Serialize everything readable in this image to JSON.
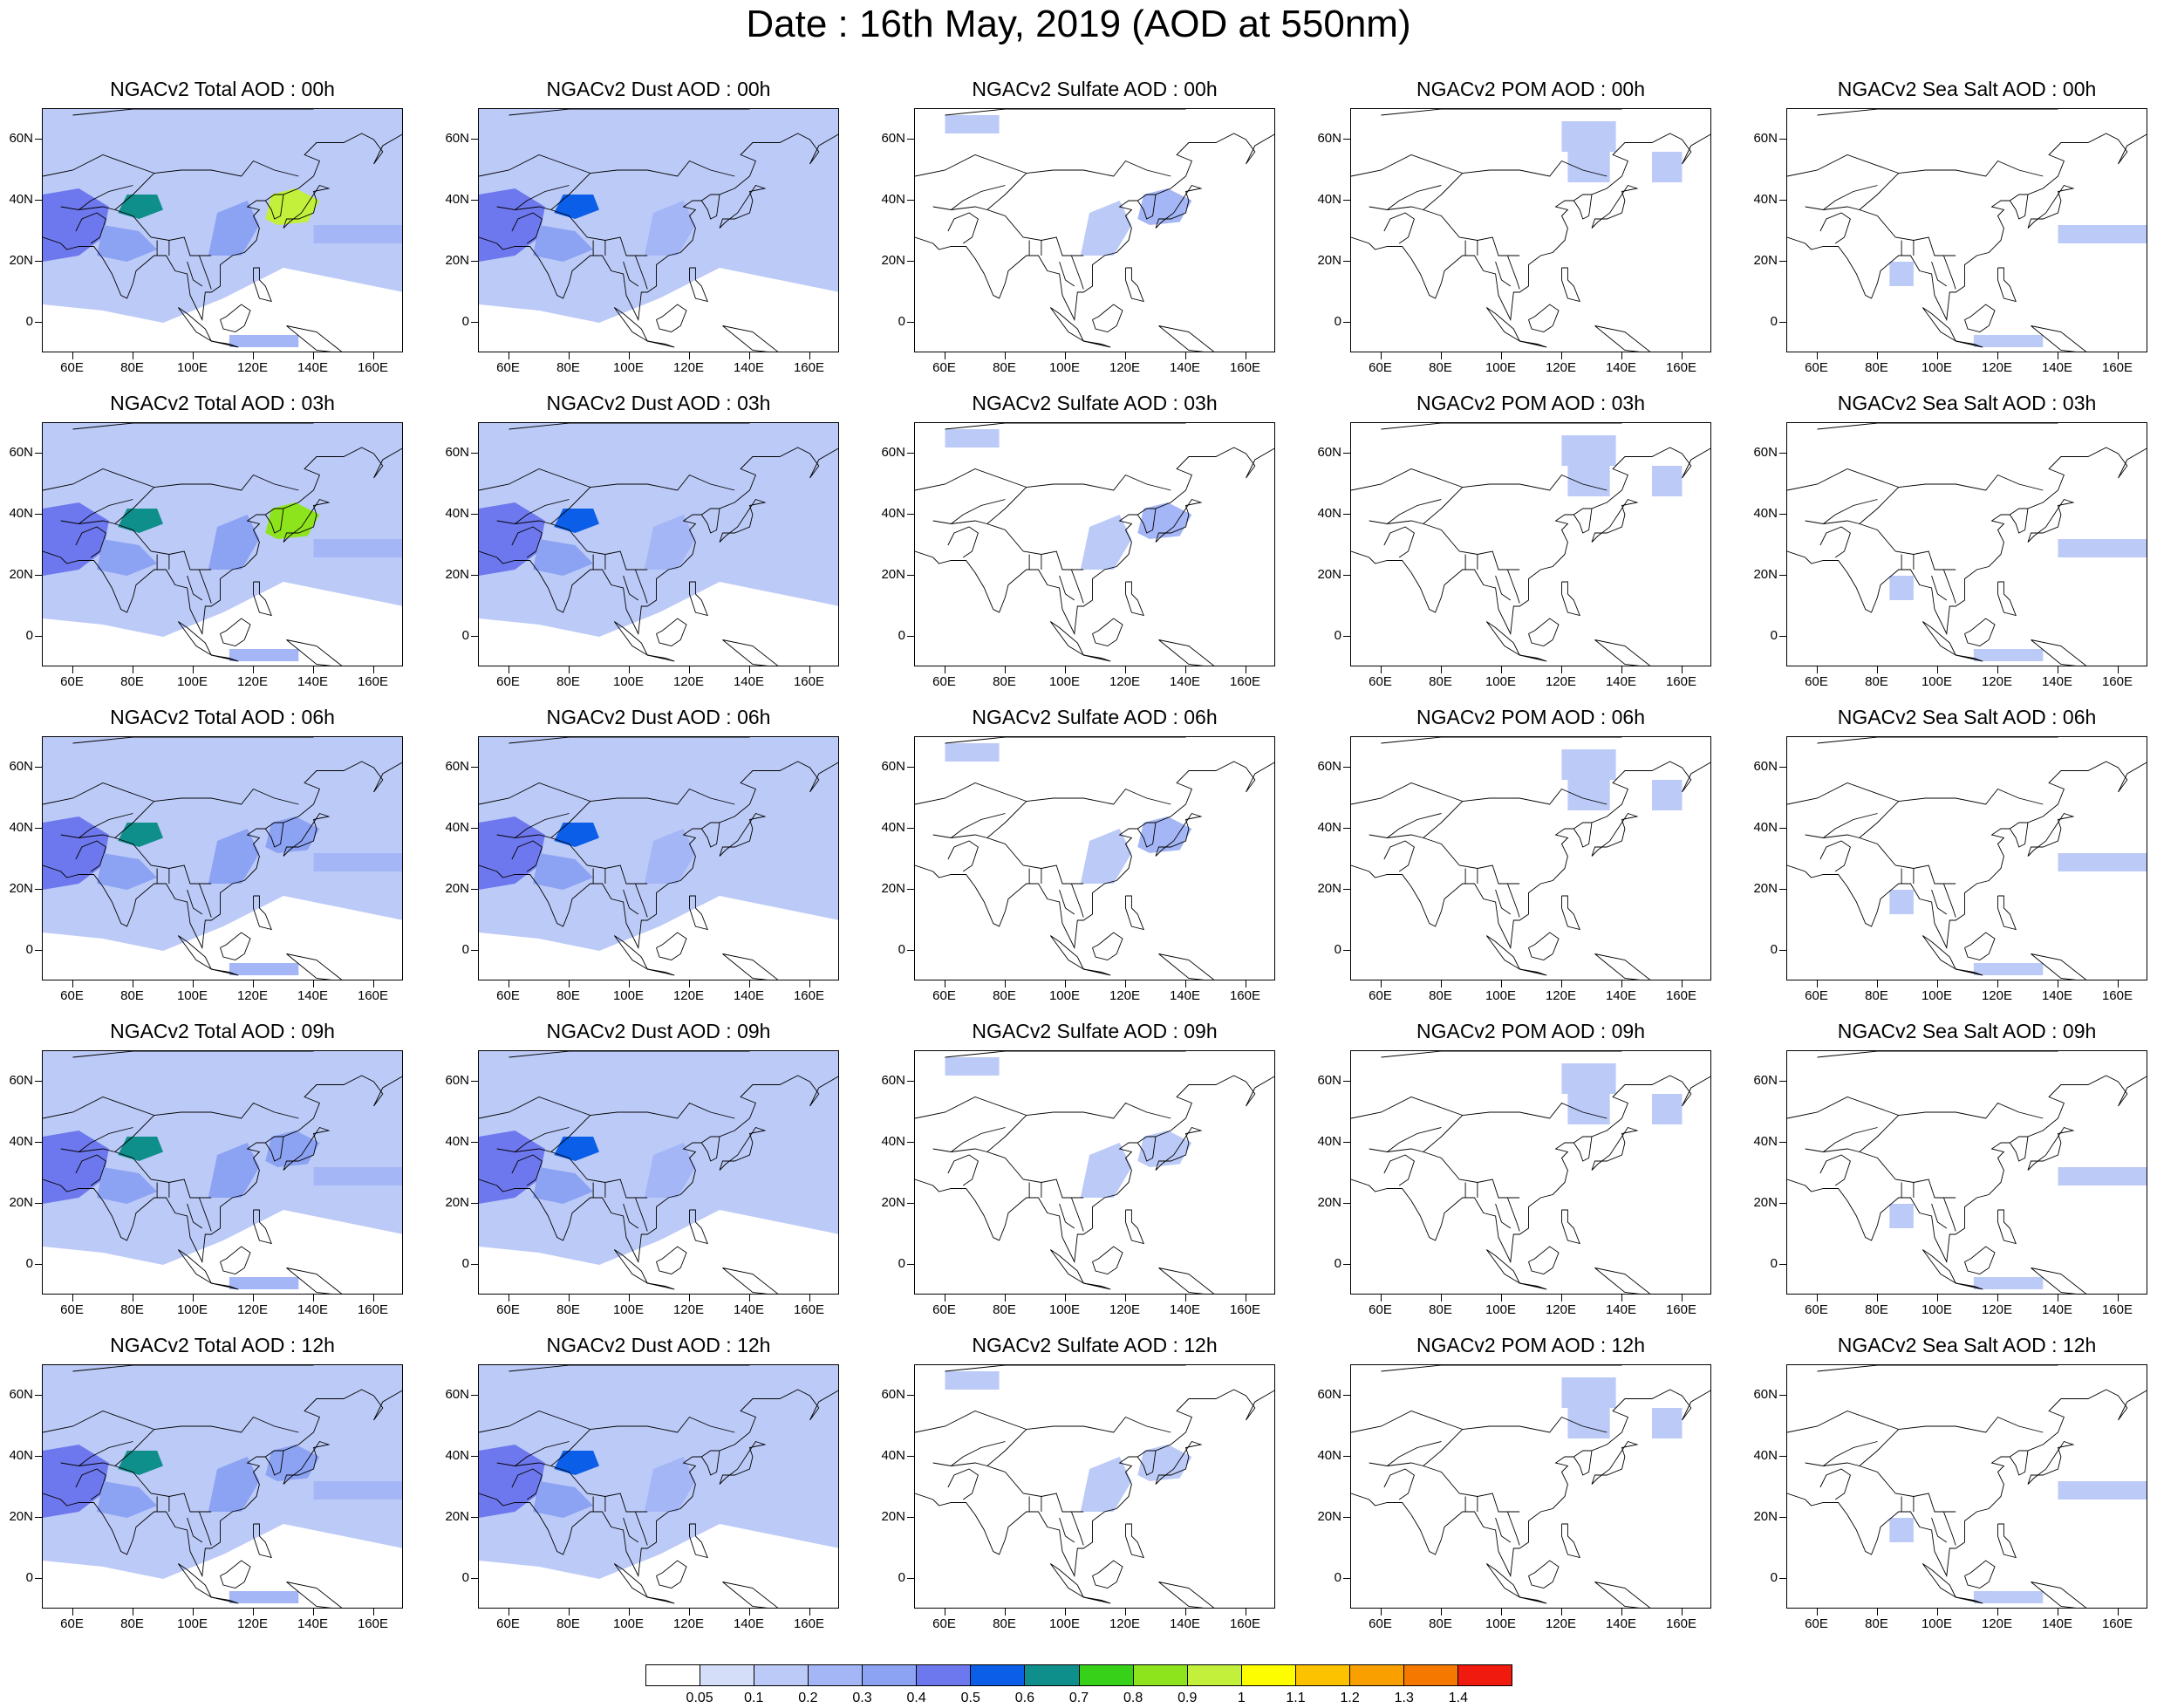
{
  "title": "Date : 16th May, 2019 (AOD at 550nm)",
  "chart_data": {
    "type": "heatmap",
    "title": "Date : 16th May, 2019 (AOD at 550nm)",
    "rows": [
      "00h",
      "03h",
      "06h",
      "09h",
      "12h"
    ],
    "columns": [
      "Total",
      "Dust",
      "Sulfate",
      "POM",
      "Sea Salt"
    ],
    "xlim": [
      50,
      170
    ],
    "ylim": [
      -10,
      70
    ],
    "x_ticks": [
      "60E",
      "80E",
      "100E",
      "120E",
      "140E",
      "160E"
    ],
    "y_ticks": [
      "0",
      "20N",
      "40N",
      "60N"
    ],
    "colorbar": {
      "levels": [
        "0.05",
        "0.1",
        "0.2",
        "0.3",
        "0.4",
        "0.5",
        "0.6",
        "0.7",
        "0.8",
        "0.9",
        "1",
        "1.1",
        "1.2",
        "1.3",
        "1.4"
      ],
      "colors": [
        "#ffffff",
        "#d5def9",
        "#bccaf7",
        "#a4b6f5",
        "#8ca2f3",
        "#6e78ee",
        "#0a5ee8",
        "#0f8f8c",
        "#38d11a",
        "#8ee41c",
        "#c2f03b",
        "#fdfd00",
        "#fcc200",
        "#f9a000",
        "#f57800",
        "#f01b0e"
      ]
    },
    "panels": [
      {
        "title": "NGACv2 Total AOD : 00h",
        "species": "Total",
        "hour": "00h",
        "max_aod": 1.0,
        "regions": {
          "background": 0.15,
          "middle_east": 0.45,
          "tarim": 0.6,
          "india_north": 0.35,
          "china_east": 0.3,
          "korea_japan": 0.9,
          "north_pacific": 0.2,
          "indonesia": 0.2
        }
      },
      {
        "title": "NGACv2 Dust AOD : 00h",
        "species": "Dust",
        "hour": "00h",
        "max_aod": 0.7,
        "regions": {
          "background": 0.12,
          "middle_east": 0.45,
          "tarim": 0.55,
          "india_north": 0.3,
          "china_east": 0.2
        }
      },
      {
        "title": "NGACv2 Sulfate AOD : 00h",
        "species": "Sulfate",
        "hour": "00h",
        "max_aod": 0.3,
        "regions": {
          "siberia_w": 0.1,
          "korea_japan": 0.25,
          "china_east": 0.1
        }
      },
      {
        "title": "NGACv2 POM AOD : 00h",
        "species": "POM",
        "hour": "00h",
        "max_aod": 0.2,
        "regions": {
          "amur": 0.15,
          "siberia_e": 0.1,
          "kamchatka": 0.1
        }
      },
      {
        "title": "NGACv2 Sea Salt AOD : 00h",
        "species": "Sea Salt",
        "hour": "00h",
        "max_aod": 0.2,
        "regions": {
          "north_pacific": 0.1,
          "indonesia": 0.15,
          "bay_bengal": 0.1
        }
      },
      {
        "title": "NGACv2 Total AOD : 03h",
        "species": "Total",
        "hour": "03h",
        "max_aod": 0.9,
        "regions": {
          "background": 0.15,
          "middle_east": 0.45,
          "tarim": 0.6,
          "india_north": 0.35,
          "china_east": 0.3,
          "korea_japan": 0.8,
          "north_pacific": 0.2,
          "indonesia": 0.2
        }
      },
      {
        "title": "NGACv2 Dust AOD : 03h",
        "species": "Dust",
        "hour": "03h",
        "max_aod": 0.7,
        "regions": {
          "background": 0.12,
          "middle_east": 0.45,
          "tarim": 0.55,
          "india_north": 0.3,
          "china_east": 0.2
        }
      },
      {
        "title": "NGACv2 Sulfate AOD : 03h",
        "species": "Sulfate",
        "hour": "03h",
        "max_aod": 0.3,
        "regions": {
          "siberia_w": 0.1,
          "korea_japan": 0.2,
          "china_east": 0.1
        }
      },
      {
        "title": "NGACv2 POM AOD : 03h",
        "species": "POM",
        "hour": "03h",
        "max_aod": 0.2,
        "regions": {
          "amur": 0.15,
          "siberia_e": 0.1,
          "kamchatka": 0.1
        }
      },
      {
        "title": "NGACv2 Sea Salt AOD : 03h",
        "species": "Sea Salt",
        "hour": "03h",
        "max_aod": 0.2,
        "regions": {
          "north_pacific": 0.1,
          "indonesia": 0.15,
          "bay_bengal": 0.1
        }
      },
      {
        "title": "NGACv2 Total AOD : 06h",
        "species": "Total",
        "hour": "06h",
        "max_aod": 0.8,
        "regions": {
          "background": 0.15,
          "middle_east": 0.45,
          "tarim": 0.6,
          "india_north": 0.35,
          "china_east": 0.3,
          "korea_japan": 0.35,
          "north_pacific": 0.2,
          "indonesia": 0.2
        }
      },
      {
        "title": "NGACv2 Dust AOD : 06h",
        "species": "Dust",
        "hour": "06h",
        "max_aod": 0.7,
        "regions": {
          "background": 0.12,
          "middle_east": 0.45,
          "tarim": 0.55,
          "india_north": 0.3,
          "china_east": 0.2
        }
      },
      {
        "title": "NGACv2 Sulfate AOD : 06h",
        "species": "Sulfate",
        "hour": "06h",
        "max_aod": 0.3,
        "regions": {
          "siberia_w": 0.1,
          "korea_japan": 0.2,
          "china_east": 0.1
        }
      },
      {
        "title": "NGACv2 POM AOD : 06h",
        "species": "POM",
        "hour": "06h",
        "max_aod": 0.2,
        "regions": {
          "amur": 0.15,
          "siberia_e": 0.1,
          "kamchatka": 0.1
        }
      },
      {
        "title": "NGACv2 Sea Salt AOD : 06h",
        "species": "Sea Salt",
        "hour": "06h",
        "max_aod": 0.2,
        "regions": {
          "north_pacific": 0.1,
          "indonesia": 0.15,
          "bay_bengal": 0.1
        }
      },
      {
        "title": "NGACv2 Total AOD : 09h",
        "species": "Total",
        "hour": "09h",
        "max_aod": 0.8,
        "regions": {
          "background": 0.15,
          "middle_east": 0.45,
          "tarim": 0.6,
          "india_north": 0.35,
          "china_east": 0.3,
          "korea_japan": 0.3,
          "north_pacific": 0.2,
          "indonesia": 0.2
        }
      },
      {
        "title": "NGACv2 Dust AOD : 09h",
        "species": "Dust",
        "hour": "09h",
        "max_aod": 0.7,
        "regions": {
          "background": 0.12,
          "middle_east": 0.45,
          "tarim": 0.55,
          "india_north": 0.3,
          "china_east": 0.2
        }
      },
      {
        "title": "NGACv2 Sulfate AOD : 09h",
        "species": "Sulfate",
        "hour": "09h",
        "max_aod": 0.3,
        "regions": {
          "siberia_w": 0.1,
          "korea_japan": 0.15,
          "china_east": 0.1
        }
      },
      {
        "title": "NGACv2 POM AOD : 09h",
        "species": "POM",
        "hour": "09h",
        "max_aod": 0.2,
        "regions": {
          "amur": 0.15,
          "siberia_e": 0.1,
          "kamchatka": 0.1
        }
      },
      {
        "title": "NGACv2 Sea Salt  AOD : 09h",
        "species": "Sea Salt",
        "hour": "09h",
        "max_aod": 0.2,
        "regions": {
          "north_pacific": 0.1,
          "indonesia": 0.15,
          "bay_bengal": 0.1
        }
      },
      {
        "title": "NGACv2 Total AOD  : 12h",
        "species": "Total",
        "hour": "12h",
        "max_aod": 0.8,
        "regions": {
          "background": 0.15,
          "middle_east": 0.45,
          "tarim": 0.6,
          "india_north": 0.35,
          "china_east": 0.3,
          "korea_japan": 0.3,
          "north_pacific": 0.2,
          "indonesia": 0.2
        }
      },
      {
        "title": "NGACv2 Dust AOD : 12h",
        "species": "Dust",
        "hour": "12h",
        "max_aod": 0.7,
        "regions": {
          "background": 0.12,
          "middle_east": 0.45,
          "tarim": 0.55,
          "india_north": 0.3,
          "china_east": 0.2
        }
      },
      {
        "title": "NGACv2 Sulfate AOD : 12h",
        "species": "Sulfate",
        "hour": "12h",
        "max_aod": 0.3,
        "regions": {
          "siberia_w": 0.1,
          "korea_japan": 0.15,
          "china_east": 0.15
        }
      },
      {
        "title": "NGACv2 POM  AOD : 12h",
        "species": "POM",
        "hour": "12h",
        "max_aod": 0.2,
        "regions": {
          "amur": 0.15,
          "siberia_e": 0.1,
          "kamchatka": 0.1
        }
      },
      {
        "title": "NGACv2 Sea Salt  AOD : 12h",
        "species": "Sea Salt",
        "hour": "12h",
        "max_aod": 0.2,
        "regions": {
          "north_pacific": 0.1,
          "indonesia": 0.15,
          "bay_bengal": 0.1
        }
      }
    ]
  }
}
